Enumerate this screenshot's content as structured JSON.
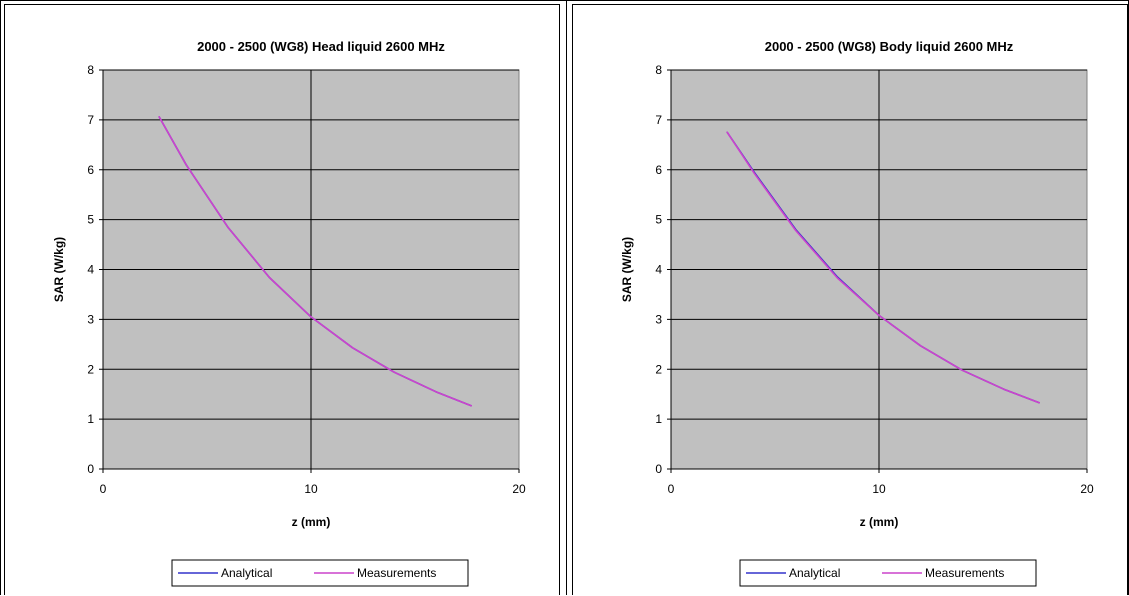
{
  "chart_data": [
    {
      "type": "line",
      "title": "2000 - 2500 (WG8) Head liquid 2600 MHz",
      "xlabel": "z (mm)",
      "ylabel": "SAR (W/kg)",
      "xlim": [
        0,
        20
      ],
      "ylim": [
        0,
        8
      ],
      "xticks": [
        0,
        10,
        20
      ],
      "yticks": [
        0,
        1,
        2,
        3,
        4,
        5,
        6,
        7,
        8
      ],
      "grid": "horizontal and vertical major gridlines",
      "plot_background": "#c0c0c0",
      "legend_position": "bottom",
      "series": [
        {
          "name": "Analytical",
          "color": "#3333cc",
          "x": [
            2.7,
            4,
            6,
            8,
            10,
            12,
            14,
            16,
            17.7
          ],
          "y": [
            7.06,
            6.1,
            4.85,
            3.84,
            3.05,
            2.43,
            1.94,
            1.55,
            1.27
          ]
        },
        {
          "name": "Measurements",
          "color": "#cc44cc",
          "x": [
            2.7,
            4,
            6,
            8,
            10,
            12,
            14,
            16,
            17.7
          ],
          "y": [
            7.06,
            6.1,
            4.85,
            3.84,
            3.05,
            2.43,
            1.94,
            1.55,
            1.27
          ]
        }
      ]
    },
    {
      "type": "line",
      "title": "2000 - 2500 (WG8) Body liquid 2600 MHz",
      "xlabel": "z (mm)",
      "ylabel": "SAR (W/kg)",
      "xlim": [
        0,
        20
      ],
      "ylim": [
        0,
        8
      ],
      "xticks": [
        0,
        10,
        20
      ],
      "yticks": [
        0,
        1,
        2,
        3,
        4,
        5,
        6,
        7,
        8
      ],
      "grid": "horizontal and vertical major gridlines",
      "plot_background": "#c0c0c0",
      "legend_position": "bottom",
      "series": [
        {
          "name": "Analytical",
          "color": "#3333cc",
          "x": [
            2.7,
            4,
            6,
            8,
            10,
            12,
            14,
            16,
            17.7
          ],
          "y": [
            6.75,
            5.95,
            4.8,
            3.85,
            3.08,
            2.47,
            1.98,
            1.6,
            1.33
          ]
        },
        {
          "name": "Measurements",
          "color": "#cc44cc",
          "x": [
            2.7,
            4,
            6,
            8,
            10,
            12,
            14,
            16,
            17.7
          ],
          "y": [
            6.75,
            5.93,
            4.78,
            3.83,
            3.08,
            2.47,
            1.98,
            1.6,
            1.33
          ]
        }
      ]
    }
  ]
}
